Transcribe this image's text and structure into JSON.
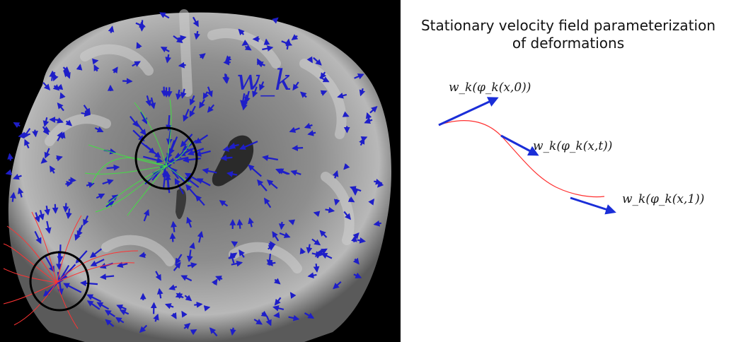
{
  "title": {
    "line1": "Stationary velocity field parameterization",
    "line2": "of deformations"
  },
  "brain_field_label": "w_k",
  "trajectory_labels": [
    "w_k(φ_k(x,0))",
    "w_k(φ_k(x,t))",
    "w_k(φ_k(x,1))"
  ],
  "colors": {
    "velocity_arrows": "#1e1ec8",
    "trajectory_curve": "#ff3030",
    "green_streamlines": "#44dd44",
    "red_streamlines": "#ff3333",
    "region_circles": "#000000"
  },
  "icons": {
    "brain_image": "coronal-brain-mri",
    "arrows": "velocity-arrow-icon"
  }
}
